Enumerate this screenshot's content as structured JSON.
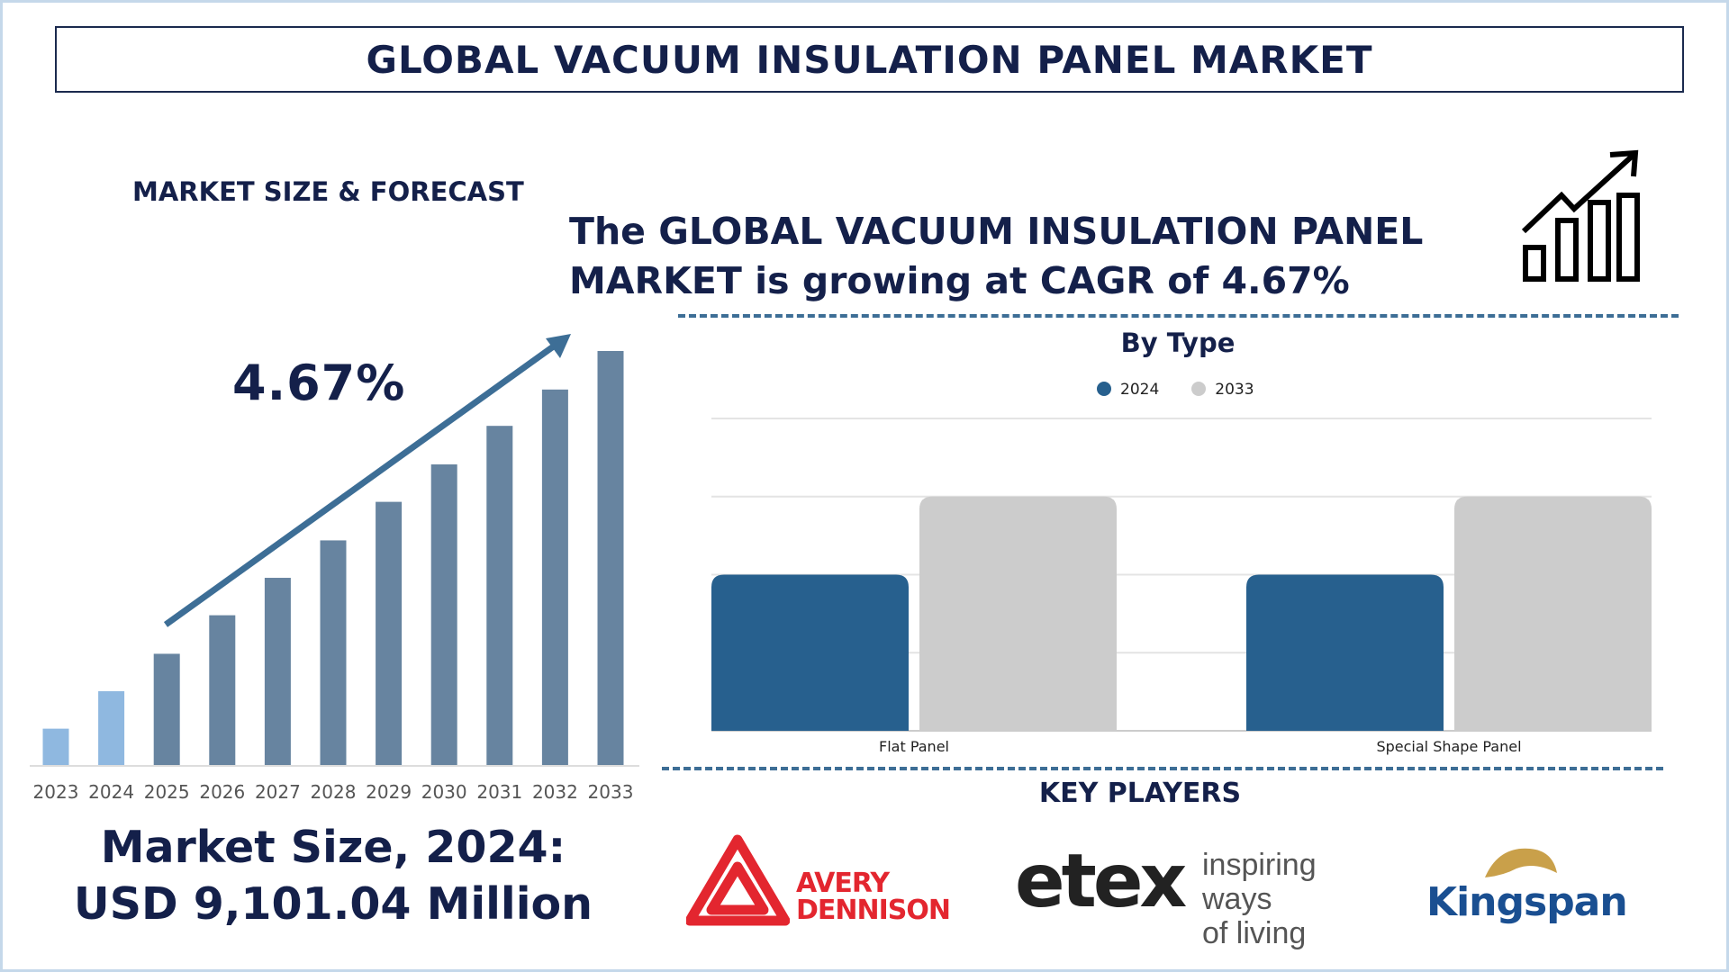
{
  "title": "GLOBAL VACUUM INSULATION PANEL MARKET",
  "section_label": "MARKET SIZE & FORECAST",
  "headline": [
    "The GLOBAL VACUUM INSULATION PANEL",
    "MARKET is growing at CAGR of 4.67%"
  ],
  "cagr_label": "4.67%",
  "market_size": [
    "Market Size, 2024:",
    "USD 9,101.04 Million"
  ],
  "key_players_title": "KEY PLAYERS",
  "key_players": [
    {
      "name": "AVERY DENNISON",
      "lines": [
        "AVERY",
        "DENNISON"
      ],
      "color": "#e3262f"
    },
    {
      "name": "etex",
      "tagline": [
        "inspiring ways",
        "of living"
      ],
      "accent": "#f08a1c"
    },
    {
      "name": "Kingspan",
      "color": "#1a4f91",
      "accent": "#c9a04a"
    }
  ],
  "colors": {
    "navy": "#14204a",
    "forecast_bar": "#6784a0",
    "forecast_bar_light": "#8fb8e0",
    "series_2024": "#27608e",
    "series_2033": "#cccccc",
    "dash": "#3d6e96"
  },
  "chart_data": [
    {
      "type": "bar",
      "title": "",
      "categories": [
        "2023",
        "2024",
        "2025",
        "2026",
        "2027",
        "2028",
        "2029",
        "2030",
        "2031",
        "2032",
        "2033"
      ],
      "values": [
        33,
        67,
        101,
        136,
        170,
        204,
        239,
        273,
        308,
        341,
        376
      ],
      "xlabel": "",
      "ylabel": "",
      "grid": false,
      "annotation": "4.67%"
    },
    {
      "type": "bar",
      "title": "By Type",
      "categories": [
        "Flat Panel",
        "Special Shape Panel"
      ],
      "series": [
        {
          "name": "2024",
          "values": [
            2,
            2
          ]
        },
        {
          "name": "2033",
          "values": [
            3,
            3
          ]
        }
      ],
      "ylim": [
        0,
        4
      ],
      "grid": true,
      "legend": "top-center"
    }
  ]
}
